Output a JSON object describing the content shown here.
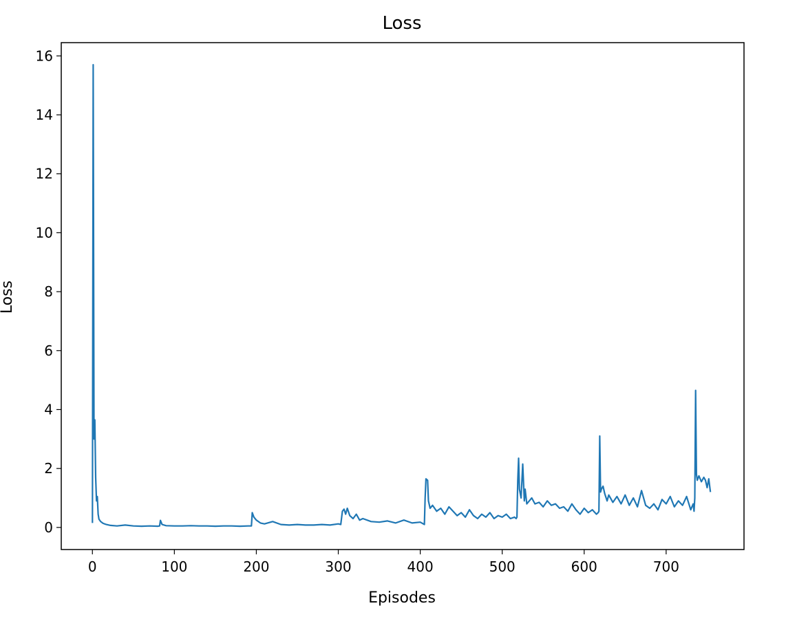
{
  "chart_data": {
    "type": "line",
    "title": "Loss",
    "xlabel": "Episodes",
    "ylabel": "Loss",
    "xlim": [
      -38,
      795
    ],
    "ylim": [
      -0.75,
      16.45
    ],
    "xticks": [
      0,
      100,
      200,
      300,
      400,
      500,
      600,
      700
    ],
    "yticks": [
      0,
      2,
      4,
      6,
      8,
      10,
      12,
      14,
      16
    ],
    "grid": false,
    "legend": "none",
    "colors": {
      "line": "#1f77b4",
      "frame": "#000000",
      "background": "#ffffff"
    },
    "series": [
      {
        "x": [
          0,
          1,
          2,
          3,
          4,
          5,
          6,
          7,
          8,
          10,
          13,
          17,
          22,
          30,
          40,
          50,
          60,
          70,
          80,
          82,
          83,
          85,
          90,
          100,
          110,
          120,
          130,
          140,
          150,
          160,
          170,
          180,
          190,
          194,
          195,
          197,
          200,
          205,
          210,
          220,
          230,
          240,
          250,
          260,
          270,
          280,
          290,
          300,
          303,
          305,
          307,
          309,
          311,
          314,
          318,
          322,
          326,
          330,
          340,
          350,
          360,
          370,
          380,
          390,
          400,
          405,
          406,
          407,
          409,
          410,
          412,
          415,
          420,
          425,
          430,
          435,
          440,
          445,
          450,
          455,
          460,
          465,
          470,
          475,
          480,
          485,
          490,
          495,
          500,
          505,
          510,
          515,
          517,
          518,
          519,
          520,
          521,
          523,
          525,
          527,
          528,
          530,
          533,
          536,
          540,
          545,
          550,
          555,
          560,
          565,
          570,
          575,
          580,
          585,
          590,
          595,
          600,
          605,
          610,
          615,
          617,
          618,
          619,
          620,
          621,
          623,
          625,
          628,
          630,
          635,
          640,
          645,
          650,
          655,
          660,
          665,
          670,
          675,
          680,
          685,
          690,
          695,
          700,
          705,
          710,
          715,
          720,
          725,
          730,
          733,
          734,
          735,
          736,
          737,
          738,
          740,
          743,
          746,
          748,
          750,
          752,
          754
        ],
        "y": [
          0.15,
          15.7,
          3.0,
          3.65,
          1.7,
          0.9,
          1.05,
          0.45,
          0.28,
          0.2,
          0.14,
          0.1,
          0.07,
          0.05,
          0.08,
          0.05,
          0.04,
          0.05,
          0.04,
          0.05,
          0.24,
          0.1,
          0.06,
          0.05,
          0.05,
          0.06,
          0.05,
          0.05,
          0.04,
          0.05,
          0.05,
          0.04,
          0.05,
          0.05,
          0.5,
          0.35,
          0.25,
          0.15,
          0.12,
          0.2,
          0.1,
          0.08,
          0.1,
          0.08,
          0.08,
          0.1,
          0.08,
          0.12,
          0.1,
          0.55,
          0.62,
          0.45,
          0.65,
          0.4,
          0.3,
          0.45,
          0.25,
          0.3,
          0.2,
          0.18,
          0.22,
          0.15,
          0.25,
          0.15,
          0.18,
          0.1,
          1.0,
          1.65,
          1.6,
          0.9,
          0.65,
          0.75,
          0.55,
          0.65,
          0.45,
          0.7,
          0.55,
          0.4,
          0.5,
          0.35,
          0.6,
          0.4,
          0.3,
          0.45,
          0.35,
          0.5,
          0.3,
          0.4,
          0.35,
          0.45,
          0.3,
          0.35,
          0.3,
          0.35,
          1.6,
          2.35,
          1.3,
          1.0,
          2.15,
          0.9,
          1.3,
          0.8,
          0.9,
          1.0,
          0.8,
          0.85,
          0.7,
          0.9,
          0.75,
          0.8,
          0.65,
          0.7,
          0.55,
          0.8,
          0.6,
          0.45,
          0.65,
          0.5,
          0.6,
          0.45,
          0.5,
          0.55,
          3.1,
          1.2,
          1.3,
          1.4,
          1.15,
          0.9,
          1.1,
          0.85,
          1.05,
          0.8,
          1.1,
          0.75,
          1.0,
          0.7,
          1.25,
          0.75,
          0.65,
          0.8,
          0.6,
          0.95,
          0.8,
          1.05,
          0.7,
          0.9,
          0.75,
          1.05,
          0.6,
          0.8,
          0.55,
          1.0,
          4.65,
          1.8,
          1.6,
          1.75,
          1.55,
          1.7,
          1.6,
          1.35,
          1.65,
          1.2
        ]
      }
    ]
  }
}
